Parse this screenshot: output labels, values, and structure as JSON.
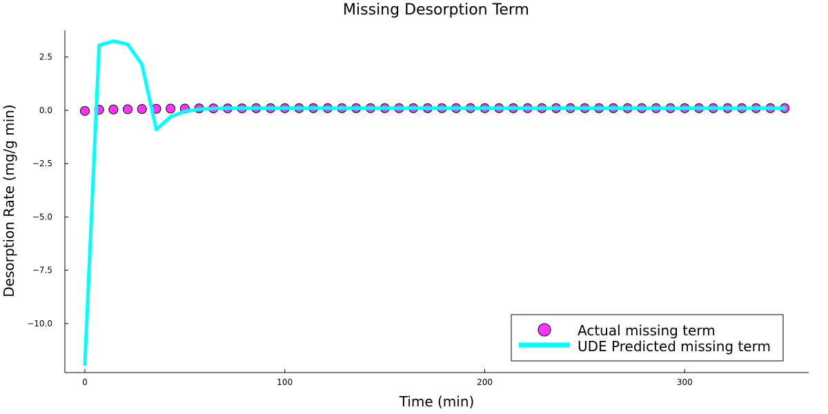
{
  "chart_data": {
    "type": "line",
    "title": "Missing Desorption Term",
    "xlabel": "Time (min)",
    "ylabel": "Desorption Rate (mg/g min)",
    "xlim": [
      -10,
      362
    ],
    "ylim": [
      -12.3,
      3.75
    ],
    "x_ticks": [
      0,
      100,
      200,
      300
    ],
    "y_ticks": [
      2.5,
      0.0,
      -2.5,
      -5.0,
      -7.5,
      -10.0
    ],
    "x_tick_labels": [
      "0",
      "100",
      "200",
      "300"
    ],
    "y_tick_labels": [
      "2.5",
      "0.0",
      "−2.5",
      "−5.0",
      "−7.5",
      "−10.0"
    ],
    "grid": false,
    "legend_position": "bottom-right",
    "series": [
      {
        "name": "Actual missing term",
        "kind": "scatter",
        "color": "#ff33ff",
        "x": [
          0,
          7.14,
          14.29,
          21.43,
          28.57,
          35.71,
          42.86,
          50,
          57.14,
          64.29,
          71.43,
          78.57,
          85.71,
          92.86,
          100,
          107.14,
          114.29,
          121.43,
          128.57,
          135.71,
          142.86,
          150,
          157.14,
          164.29,
          171.43,
          178.57,
          185.71,
          192.86,
          200,
          207.14,
          214.29,
          221.43,
          228.57,
          235.71,
          242.86,
          250,
          257.14,
          264.29,
          271.43,
          278.57,
          285.71,
          292.86,
          300,
          307.14,
          314.29,
          321.43,
          328.57,
          335.71,
          342.86,
          350
        ],
        "y": [
          -0.03,
          0.03,
          0.04,
          0.05,
          0.06,
          0.07,
          0.08,
          0.08,
          0.09,
          0.09,
          0.09,
          0.09,
          0.1,
          0.1,
          0.1,
          0.1,
          0.1,
          0.1,
          0.1,
          0.1,
          0.1,
          0.1,
          0.1,
          0.1,
          0.1,
          0.1,
          0.1,
          0.1,
          0.1,
          0.1,
          0.1,
          0.1,
          0.1,
          0.1,
          0.1,
          0.1,
          0.1,
          0.1,
          0.1,
          0.1,
          0.1,
          0.1,
          0.1,
          0.1,
          0.1,
          0.1,
          0.1,
          0.1,
          0.1,
          0.1
        ]
      },
      {
        "name": "UDE Predicted missing term",
        "kind": "line",
        "color": "#00ffff",
        "x": [
          0,
          7.14,
          14.29,
          21.43,
          28.57,
          35.71,
          42.86,
          50,
          57.14,
          64.29,
          71.43,
          78.57,
          85.71,
          100,
          150,
          200,
          250,
          300,
          350
        ],
        "y": [
          -11.9,
          3.05,
          3.25,
          3.1,
          2.15,
          -0.9,
          -0.3,
          -0.05,
          0.05,
          0.08,
          0.1,
          0.1,
          0.1,
          0.1,
          0.1,
          0.1,
          0.1,
          0.1,
          0.1
        ]
      }
    ]
  }
}
